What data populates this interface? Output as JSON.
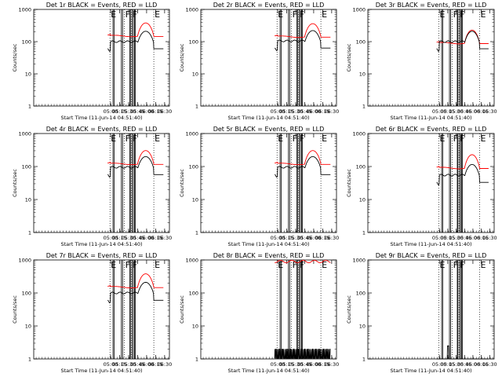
{
  "chart_data": [
    {
      "type": "line",
      "title": "Det 1r BLACK = Events, RED = LLD",
      "xlabel": "Start Time (11-Jun-14 04:51:40)",
      "ylabel": "Counts/sec",
      "y_scale": "log",
      "ylim": [
        1,
        1000
      ],
      "xlim": [
        "02:52",
        "06:38"
      ],
      "x_ticks": [
        "05:00",
        "05:15",
        "05:30",
        "05:45",
        "06:00",
        "06:15",
        "06:30"
      ],
      "y_ticks": [
        "1",
        "10",
        "100",
        "1000"
      ],
      "flags": [
        {
          "label": "E",
          "t": "04:59"
        },
        {
          "label": "F",
          "t": "05:23"
        },
        {
          "label": "F",
          "t": "05:35"
        },
        {
          "label": "E",
          "t": "06:12"
        }
      ],
      "series": [
        {
          "name": "RED = LLD",
          "color": "#ff0000",
          "key": "red",
          "style": "A",
          "scale": 1.0
        },
        {
          "name": "BLACK = Events",
          "color": "#000000",
          "key": "black",
          "style": "A",
          "scale": 1.0
        }
      ]
    },
    {
      "type": "line",
      "title": "Det 2r BLACK = Events, RED = LLD",
      "xlabel": "Start Time (11-Jun-14 04:51:40)",
      "ylabel": "Counts/sec",
      "y_scale": "log",
      "ylim": [
        1,
        1000
      ],
      "xlim": [
        "02:52",
        "06:38"
      ],
      "x_ticks": [
        "05:00",
        "05:15",
        "05:30",
        "05:45",
        "06:00",
        "06:15",
        "06:30"
      ],
      "y_ticks": [
        "1",
        "10",
        "100",
        "1000"
      ],
      "flags": [
        {
          "label": "E",
          "t": "04:59"
        },
        {
          "label": "F",
          "t": "05:23"
        },
        {
          "label": "F",
          "t": "05:35"
        },
        {
          "label": "E",
          "t": "06:12"
        }
      ],
      "series": [
        {
          "name": "RED = LLD",
          "color": "#ff0000",
          "key": "red",
          "style": "A",
          "scale": 0.95
        },
        {
          "name": "BLACK = Events",
          "color": "#000000",
          "key": "black",
          "style": "A",
          "scale": 1.05
        }
      ]
    },
    {
      "type": "line",
      "title": "Det 3r BLACK = Events, RED = LLD",
      "xlabel": "Start Time (11-Jun-14 04:51:40)",
      "ylabel": "Counts/sec",
      "y_scale": "log",
      "ylim": [
        1,
        1000
      ],
      "xlim": [
        "02:52",
        "06:38"
      ],
      "x_ticks": [
        "05:00",
        "05:15",
        "05:30",
        "05:45",
        "06:00",
        "06:15",
        "06:30"
      ],
      "y_ticks": [
        "1",
        "10",
        "100",
        "1000"
      ],
      "flags": [
        {
          "label": "E",
          "t": "04:59"
        },
        {
          "label": "F",
          "t": "05:23"
        },
        {
          "label": "F",
          "t": "05:35"
        },
        {
          "label": "E",
          "t": "06:12"
        }
      ],
      "series": [
        {
          "name": "RED = LLD",
          "color": "#ff0000",
          "key": "red",
          "style": "A",
          "scale": 0.6
        },
        {
          "name": "BLACK = Events",
          "color": "#000000",
          "key": "black",
          "style": "A",
          "scale": 1.0
        }
      ]
    },
    {
      "type": "line",
      "title": "Det 4r BLACK = Events, RED = LLD",
      "xlabel": "Start Time (11-Jun-14 04:51:40)",
      "ylabel": "Counts/sec",
      "y_scale": "log",
      "ylim": [
        1,
        1000
      ],
      "xlim": [
        "02:52",
        "06:38"
      ],
      "x_ticks": [
        "05:00",
        "05:15",
        "05:30",
        "05:45",
        "06:00",
        "06:15",
        "06:30"
      ],
      "y_ticks": [
        "1",
        "10",
        "100",
        "1000"
      ],
      "flags": [
        {
          "label": "E",
          "t": "04:59"
        },
        {
          "label": "F",
          "t": "05:23"
        },
        {
          "label": "F",
          "t": "05:35"
        },
        {
          "label": "E",
          "t": "06:12"
        }
      ],
      "series": [
        {
          "name": "RED = LLD",
          "color": "#ff0000",
          "key": "red",
          "style": "A",
          "scale": 0.8
        },
        {
          "name": "BLACK = Events",
          "color": "#000000",
          "key": "black",
          "style": "A",
          "scale": 0.95
        }
      ]
    },
    {
      "type": "line",
      "title": "Det 5r BLACK = Events, RED = LLD",
      "xlabel": "Start Time (11-Jun-14 04:51:40)",
      "ylabel": "Counts/sec",
      "y_scale": "log",
      "ylim": [
        1,
        1000
      ],
      "xlim": [
        "02:52",
        "06:38"
      ],
      "x_ticks": [
        "05:00",
        "05:15",
        "05:30",
        "05:45",
        "06:00",
        "06:15",
        "06:30"
      ],
      "y_ticks": [
        "1",
        "10",
        "100",
        "1000"
      ],
      "flags": [
        {
          "label": "E",
          "t": "04:59"
        },
        {
          "label": "F",
          "t": "05:23"
        },
        {
          "label": "F",
          "t": "05:35"
        },
        {
          "label": "E",
          "t": "06:12"
        }
      ],
      "series": [
        {
          "name": "RED = LLD",
          "color": "#ff0000",
          "key": "red",
          "style": "A",
          "scale": 0.8
        },
        {
          "name": "BLACK = Events",
          "color": "#000000",
          "key": "black",
          "style": "A",
          "scale": 0.95
        }
      ]
    },
    {
      "type": "line",
      "title": "Det 6r BLACK = Events, RED = LLD",
      "xlabel": "Start Time (11-Jun-14 04:51:40)",
      "ylabel": "Counts/sec",
      "y_scale": "log",
      "ylim": [
        1,
        1000
      ],
      "xlim": [
        "02:52",
        "06:38"
      ],
      "x_ticks": [
        "05:00",
        "05:15",
        "05:30",
        "05:45",
        "06:00",
        "06:15",
        "06:30"
      ],
      "y_ticks": [
        "1",
        "10",
        "100",
        "1000"
      ],
      "flags": [
        {
          "label": "E",
          "t": "04:59"
        },
        {
          "label": "F",
          "t": "05:23"
        },
        {
          "label": "F",
          "t": "05:35"
        },
        {
          "label": "E",
          "t": "06:12"
        }
      ],
      "series": [
        {
          "name": "RED = LLD",
          "color": "#ff0000",
          "key": "red",
          "style": "A",
          "scale": 0.6
        },
        {
          "name": "BLACK = Events",
          "color": "#000000",
          "key": "black",
          "style": "A",
          "scale": 0.55
        }
      ]
    },
    {
      "type": "line",
      "title": "Det 7r BLACK = Events, RED = LLD",
      "xlabel": "Start Time (11-Jun-14 04:51:40)",
      "ylabel": "Counts/sec",
      "y_scale": "log",
      "ylim": [
        1,
        1000
      ],
      "xlim": [
        "02:52",
        "06:38"
      ],
      "x_ticks": [
        "05:00",
        "05:15",
        "05:30",
        "05:45",
        "06:00",
        "06:15",
        "06:30"
      ],
      "y_ticks": [
        "1",
        "10",
        "100",
        "1000"
      ],
      "flags": [
        {
          "label": "E",
          "t": "04:59"
        },
        {
          "label": "F",
          "t": "05:23"
        },
        {
          "label": "F",
          "t": "05:35"
        },
        {
          "label": "E",
          "t": "06:12"
        }
      ],
      "series": [
        {
          "name": "RED = LLD",
          "color": "#ff0000",
          "key": "red",
          "style": "A",
          "scale": 1.0
        },
        {
          "name": "BLACK = Events",
          "color": "#000000",
          "key": "black",
          "style": "A",
          "scale": 1.0
        }
      ]
    },
    {
      "type": "line",
      "title": "Det 8r BLACK = Events, RED = LLD",
      "xlabel": "Start Time (11-Jun-14 04:51:40)",
      "ylabel": "Counts/sec",
      "y_scale": "log",
      "ylim": [
        1,
        1000
      ],
      "xlim": [
        "02:52",
        "06:38"
      ],
      "x_ticks": [
        "05:00",
        "05:15",
        "05:30",
        "05:45",
        "06:00",
        "06:15",
        "06:30"
      ],
      "y_ticks": [
        "1",
        "10",
        "100",
        "1000"
      ],
      "flags": [
        {
          "label": "E",
          "t": "04:59"
        },
        {
          "label": "F",
          "t": "05:23"
        },
        {
          "label": "F",
          "t": "05:35"
        },
        {
          "label": "E",
          "t": "06:12"
        }
      ],
      "series": [
        {
          "name": "RED = LLD",
          "color": "#ff0000",
          "key": "red",
          "style": "B",
          "scale": 1.0
        },
        {
          "name": "BLACK = Events",
          "color": "#000000",
          "key": "black",
          "style": "B",
          "scale": 1.0
        }
      ]
    },
    {
      "type": "line",
      "title": "Det 9r BLACK = Events, RED = LLD",
      "xlabel": "Start Time (11-Jun-14 04:51:40)",
      "ylabel": "Counts/sec",
      "y_scale": "log",
      "ylim": [
        1,
        1000
      ],
      "xlim": [
        "02:52",
        "06:38"
      ],
      "x_ticks": [
        "05:00",
        "05:15",
        "05:30",
        "05:45",
        "06:00",
        "06:15",
        "06:30"
      ],
      "y_ticks": [
        "1",
        "10",
        "100",
        "1000"
      ],
      "flags": [
        {
          "label": "E",
          "t": "04:59"
        },
        {
          "label": "F",
          "t": "05:23"
        },
        {
          "label": "F",
          "t": "05:35"
        },
        {
          "label": "E",
          "t": "06:12"
        }
      ],
      "series": [
        {
          "name": "BLACK = Events",
          "color": "#000000",
          "key": "black",
          "style": "C",
          "scale": 1.0
        }
      ]
    }
  ]
}
